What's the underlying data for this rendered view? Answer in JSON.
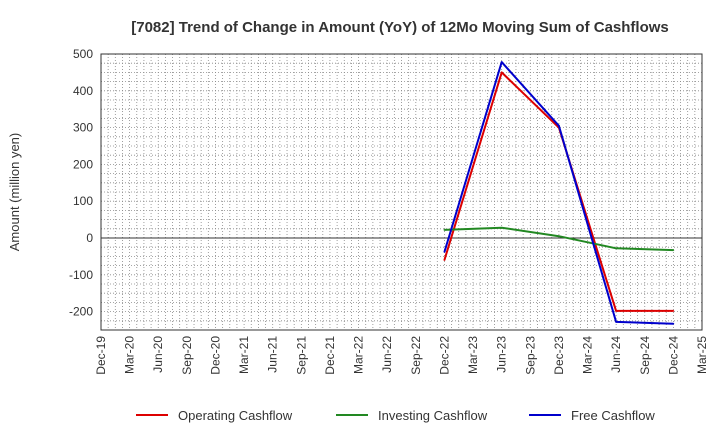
{
  "chart_data": {
    "type": "line",
    "title": "[7082]  Trend of Change in Amount (YoY) of 12Mo Moving Sum of Cashflows",
    "xlabel": "",
    "ylabel": "Amount (million yen)",
    "ylim": [
      -250,
      500
    ],
    "yticks": [
      500,
      400,
      300,
      200,
      100,
      0,
      -100,
      -200
    ],
    "grid": true,
    "legend_position": "bottom",
    "categories": [
      "Dec-19",
      "Mar-20",
      "Jun-20",
      "Sep-20",
      "Dec-20",
      "Mar-21",
      "Jun-21",
      "Sep-21",
      "Dec-21",
      "Mar-22",
      "Jun-22",
      "Sep-22",
      "Dec-22",
      "Mar-23",
      "Jun-23",
      "Sep-23",
      "Dec-23",
      "Mar-24",
      "Jun-24",
      "Sep-24",
      "Dec-24",
      "Mar-25"
    ],
    "series": [
      {
        "name": "Operating Cashflow",
        "color": "#dd0000",
        "values": [
          null,
          null,
          null,
          null,
          null,
          null,
          null,
          null,
          null,
          null,
          null,
          null,
          -60,
          null,
          450,
          null,
          300,
          null,
          -198,
          null,
          -198,
          null
        ]
      },
      {
        "name": "Investing Cashflow",
        "color": "#228822",
        "values": [
          null,
          null,
          null,
          null,
          null,
          null,
          null,
          null,
          null,
          null,
          null,
          null,
          22,
          null,
          28,
          null,
          5,
          null,
          -28,
          null,
          -33,
          null
        ]
      },
      {
        "name": "Free Cashflow",
        "color": "#0000cc",
        "values": [
          null,
          null,
          null,
          null,
          null,
          null,
          null,
          null,
          null,
          null,
          null,
          null,
          -38,
          null,
          478,
          null,
          305,
          null,
          -228,
          null,
          -233,
          null
        ]
      }
    ]
  }
}
